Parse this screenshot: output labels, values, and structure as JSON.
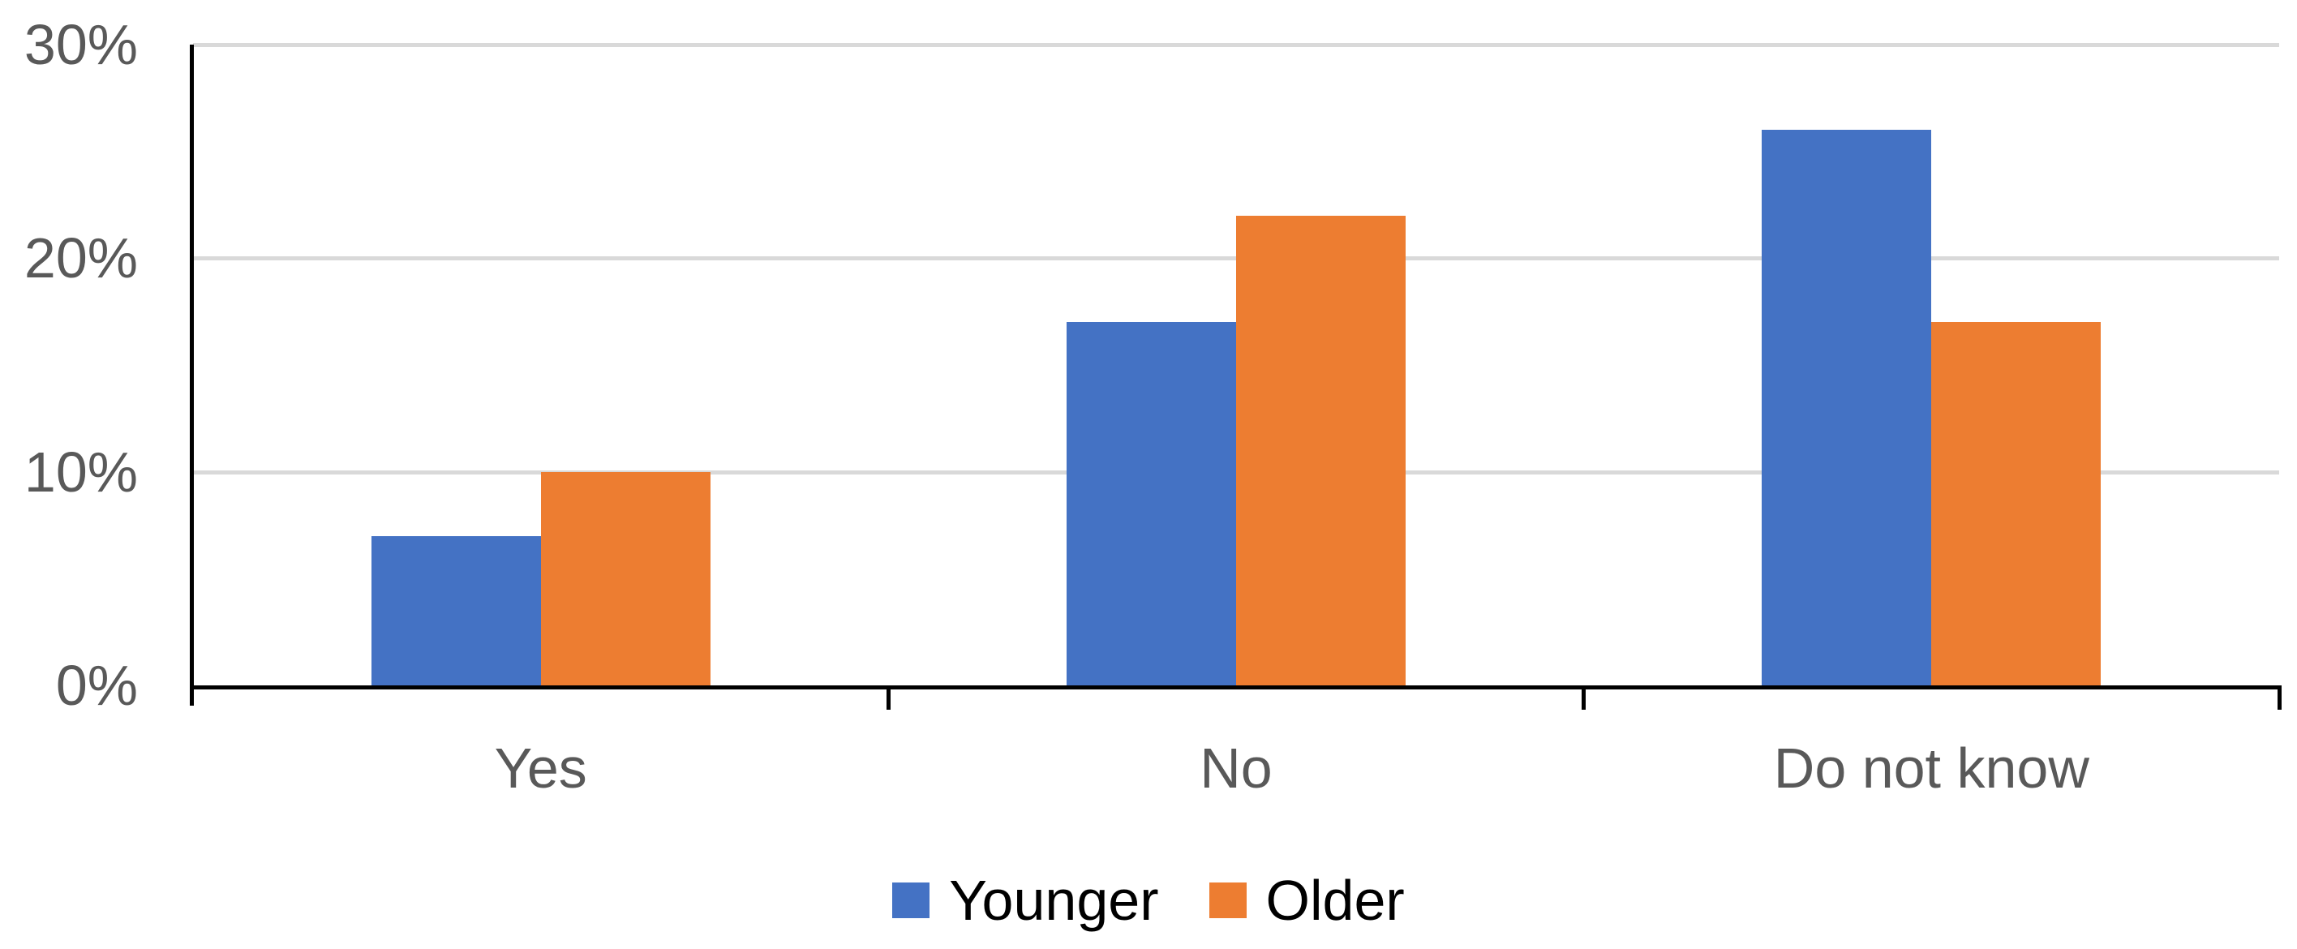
{
  "chart_data": {
    "type": "bar",
    "title": "",
    "xlabel": "",
    "ylabel": "",
    "categories": [
      "Yes",
      "No",
      "Do not know"
    ],
    "series": [
      {
        "name": "Younger",
        "color": "#4472C4",
        "values": [
          7,
          17,
          26
        ]
      },
      {
        "name": "Older",
        "color": "#ED7D31",
        "values": [
          10,
          22,
          17
        ]
      }
    ],
    "y_axis": {
      "min": 0,
      "max": 30,
      "step": 10,
      "tick_labels": [
        "0%",
        "10%",
        "20%",
        "30%"
      ]
    },
    "grid": "horizontal",
    "legend_position": "bottom"
  },
  "colors": {
    "series_younger": "#4472C4",
    "series_older": "#ED7D31",
    "gridline": "#D9D9D9",
    "axis_line": "#000000",
    "axis_tick_label_text": "#595959",
    "legend_text": "#000000",
    "background": "#FFFFFF"
  }
}
